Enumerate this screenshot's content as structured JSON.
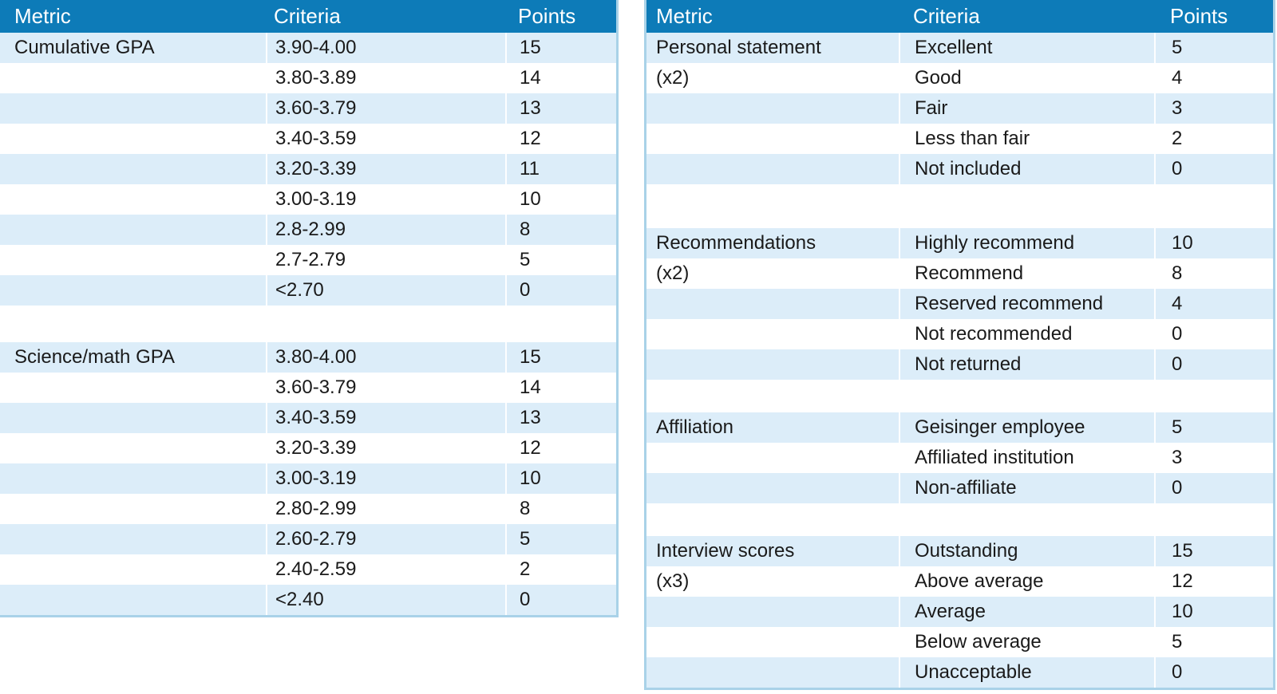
{
  "colors": {
    "header_bg": "#0d7bb8",
    "row_highlight": "#dcedf9",
    "row_plain": "#ffffff",
    "table_border": "#a9d2e8",
    "header_text": "#ffffff",
    "body_text": "#1a1a1a"
  },
  "tables": [
    {
      "name": "gpa-scoring-table",
      "headers": [
        "Metric",
        "Criteria",
        "Points"
      ],
      "sections": [
        {
          "metric": "Cumulative GPA",
          "multiplier": "",
          "rows": [
            [
              "3.90-4.00",
              "15"
            ],
            [
              "3.80-3.89",
              "14"
            ],
            [
              "3.60-3.79",
              "13"
            ],
            [
              "3.40-3.59",
              "12"
            ],
            [
              "3.20-3.39",
              "11"
            ],
            [
              "3.00-3.19",
              "10"
            ],
            [
              "2.8-2.99",
              "8"
            ],
            [
              "2.7-2.79",
              "5"
            ],
            [
              "<2.70",
              "0"
            ]
          ]
        },
        {
          "metric": "Science/math GPA",
          "multiplier": "",
          "rows": [
            [
              "3.80-4.00",
              "15"
            ],
            [
              "3.60-3.79",
              "14"
            ],
            [
              "3.40-3.59",
              "13"
            ],
            [
              "3.20-3.39",
              "12"
            ],
            [
              "3.00-3.19",
              "10"
            ],
            [
              "2.80-2.99",
              "8"
            ],
            [
              "2.60-2.79",
              "5"
            ],
            [
              "2.40-2.59",
              "2"
            ],
            [
              "<2.40",
              "0"
            ]
          ]
        }
      ]
    },
    {
      "name": "application-scoring-table",
      "headers": [
        "Metric",
        "Criteria",
        "Points"
      ],
      "sections": [
        {
          "metric": "Personal statement",
          "multiplier": "(x2)",
          "rows": [
            [
              "Excellent",
              "5"
            ],
            [
              "Good",
              "4"
            ],
            [
              "Fair",
              "3"
            ],
            [
              "Less than fair",
              "2"
            ],
            [
              "Not included",
              "0"
            ]
          ]
        },
        {
          "metric": "Recommendations",
          "multiplier": "(x2)",
          "rows": [
            [
              "Highly recommend",
              "10"
            ],
            [
              "Recommend",
              "8"
            ],
            [
              "Reserved recommend",
              "4"
            ],
            [
              "Not recommended",
              "0"
            ],
            [
              "Not returned",
              "0"
            ]
          ]
        },
        {
          "metric": "Affiliation",
          "multiplier": "",
          "rows": [
            [
              "Geisinger employee",
              "5"
            ],
            [
              "Affiliated institution",
              "3"
            ],
            [
              "Non-affiliate",
              "0"
            ]
          ]
        },
        {
          "metric": "Interview scores",
          "multiplier": "(x3)",
          "rows": [
            [
              "Outstanding",
              "15"
            ],
            [
              "Above average",
              "12"
            ],
            [
              "Average",
              "10"
            ],
            [
              "Below average",
              "5"
            ],
            [
              "Unacceptable",
              "0"
            ]
          ]
        }
      ]
    }
  ]
}
